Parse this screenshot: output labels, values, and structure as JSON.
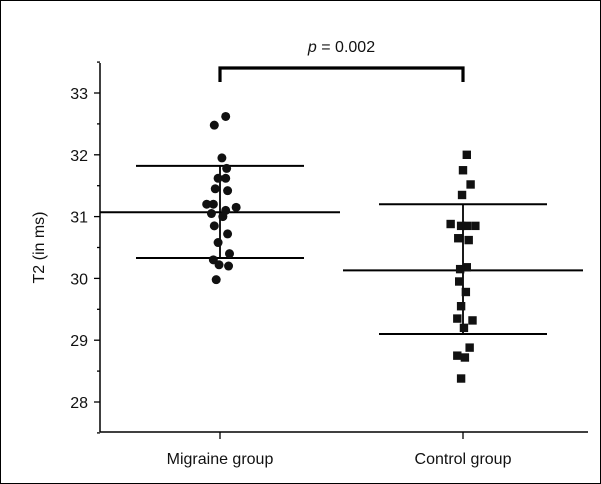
{
  "chart_data": {
    "type": "scatter",
    "ylabel": "T2 (in ms)",
    "xlabel": "",
    "ylim": [
      27.5,
      33.5
    ],
    "yticks": [
      28,
      29,
      30,
      31,
      32,
      33
    ],
    "categories": [
      "Migraine group",
      "Control group"
    ],
    "significance": {
      "p_symbol": "p",
      "text": " = 0.002",
      "between": [
        0,
        1
      ]
    },
    "series": [
      {
        "category": "Migraine group",
        "marker": "circle",
        "mean": 31.07,
        "sd_upper": 31.82,
        "sd_lower": 30.33,
        "points": [
          {
            "x": 0.06,
            "y": 32.62
          },
          {
            "x": -0.06,
            "y": 32.48
          },
          {
            "x": 0.02,
            "y": 31.95
          },
          {
            "x": 0.07,
            "y": 31.78
          },
          {
            "x": -0.02,
            "y": 31.62
          },
          {
            "x": 0.06,
            "y": 31.62
          },
          {
            "x": -0.05,
            "y": 31.45
          },
          {
            "x": 0.08,
            "y": 31.42
          },
          {
            "x": -0.14,
            "y": 31.2
          },
          {
            "x": -0.07,
            "y": 31.2
          },
          {
            "x": 0.17,
            "y": 31.15
          },
          {
            "x": 0.06,
            "y": 31.1
          },
          {
            "x": -0.09,
            "y": 31.05
          },
          {
            "x": 0.03,
            "y": 31.0
          },
          {
            "x": -0.06,
            "y": 30.85
          },
          {
            "x": 0.08,
            "y": 30.72
          },
          {
            "x": -0.02,
            "y": 30.58
          },
          {
            "x": 0.1,
            "y": 30.4
          },
          {
            "x": -0.07,
            "y": 30.3
          },
          {
            "x": -0.01,
            "y": 30.22
          },
          {
            "x": 0.09,
            "y": 30.2
          },
          {
            "x": -0.04,
            "y": 29.98
          }
        ]
      },
      {
        "category": "Control group",
        "marker": "square",
        "mean": 30.13,
        "sd_upper": 31.2,
        "sd_lower": 29.1,
        "points": [
          {
            "x": 0.04,
            "y": 32.0
          },
          {
            "x": 0.0,
            "y": 31.75
          },
          {
            "x": 0.08,
            "y": 31.52
          },
          {
            "x": -0.01,
            "y": 31.35
          },
          {
            "x": -0.13,
            "y": 30.88
          },
          {
            "x": -0.02,
            "y": 30.85
          },
          {
            "x": 0.04,
            "y": 30.85
          },
          {
            "x": 0.13,
            "y": 30.85
          },
          {
            "x": -0.05,
            "y": 30.65
          },
          {
            "x": 0.06,
            "y": 30.62
          },
          {
            "x": 0.04,
            "y": 30.18
          },
          {
            "x": -0.03,
            "y": 30.15
          },
          {
            "x": -0.04,
            "y": 29.95
          },
          {
            "x": 0.03,
            "y": 29.78
          },
          {
            "x": -0.02,
            "y": 29.55
          },
          {
            "x": 0.1,
            "y": 29.32
          },
          {
            "x": -0.06,
            "y": 29.35
          },
          {
            "x": 0.01,
            "y": 29.2
          },
          {
            "x": 0.07,
            "y": 28.88
          },
          {
            "x": -0.06,
            "y": 28.75
          },
          {
            "x": 0.02,
            "y": 28.72
          },
          {
            "x": -0.02,
            "y": 28.38
          }
        ]
      }
    ]
  }
}
